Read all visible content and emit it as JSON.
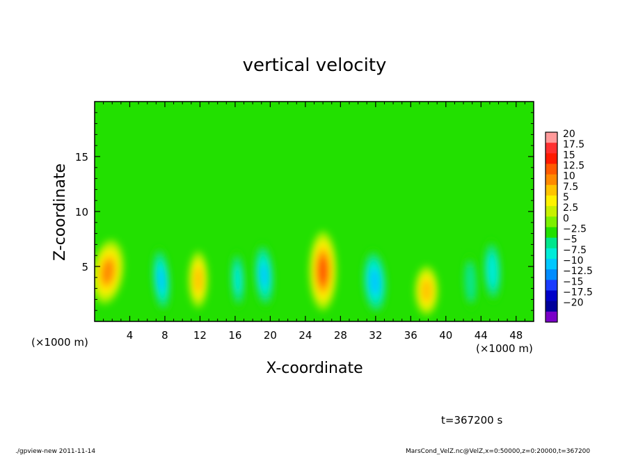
{
  "chart_data": {
    "type": "heatmap",
    "title": "vertical velocity",
    "xlabel": "X-coordinate",
    "ylabel": "Z-coordinate",
    "x_unit_left": "(×1000 m)",
    "x_unit_right": "(×1000 m)",
    "xlim": [
      0,
      50
    ],
    "ylim": [
      0,
      20
    ],
    "x_ticks": [
      4,
      8,
      12,
      16,
      20,
      24,
      28,
      32,
      36,
      40,
      44,
      48
    ],
    "y_ticks": [
      5,
      10,
      15
    ],
    "x_tick_labels": [
      "4",
      "8",
      "12",
      "16",
      "20",
      "24",
      "28",
      "32",
      "36",
      "40",
      "44",
      "48"
    ],
    "y_tick_labels": [
      "5",
      "10",
      "15"
    ],
    "colorbar": {
      "levels": [
        20,
        17.5,
        15,
        12.5,
        10,
        7.5,
        5,
        2.5,
        0,
        -2.5,
        -5,
        -7.5,
        -10,
        -12.5,
        -15,
        -17.5,
        -20
      ],
      "labels": [
        "20",
        "17.5",
        "15",
        "12.5",
        "10",
        "7.5",
        "5",
        "2.5",
        "0",
        "−2.5",
        "−5",
        "−7.5",
        "−10",
        "−12.5",
        "−15",
        "−17.5",
        "−20"
      ],
      "colors": [
        "#ff9a9a",
        "#ff3030",
        "#ff1a00",
        "#ff5a00",
        "#ff8a00",
        "#ffc400",
        "#fff200",
        "#c8f000",
        "#7cf000",
        "#22e000",
        "#00e68c",
        "#00ecd8",
        "#00c8ff",
        "#008cff",
        "#1a3cff",
        "#0000c8",
        "#00009a",
        "#7a00c8"
      ]
    },
    "cells": [
      {
        "x": 1.5,
        "z": 4.5,
        "w": -0.3,
        "sx": 1.6,
        "sz": 2.6,
        "value": 14
      },
      {
        "x": 7.6,
        "z": 3.8,
        "w": 0.2,
        "sx": 0.9,
        "sz": 2.6,
        "value": -10
      },
      {
        "x": 11.8,
        "z": 3.8,
        "w": 0,
        "sx": 1.0,
        "sz": 2.3,
        "value": 12
      },
      {
        "x": 16.3,
        "z": 3.8,
        "w": 0.1,
        "sx": 0.7,
        "sz": 2.3,
        "value": -8
      },
      {
        "x": 19.3,
        "z": 4.2,
        "w": 0.15,
        "sx": 1.0,
        "sz": 2.6,
        "value": -10
      },
      {
        "x": 26.0,
        "z": 4.6,
        "w": 0,
        "sx": 1.4,
        "sz": 3.2,
        "value": 17
      },
      {
        "x": 31.9,
        "z": 3.6,
        "w": 0.15,
        "sx": 1.2,
        "sz": 2.6,
        "value": -11
      },
      {
        "x": 37.8,
        "z": 2.8,
        "w": 0,
        "sx": 1.2,
        "sz": 2.0,
        "value": 12
      },
      {
        "x": 42.8,
        "z": 3.6,
        "w": 0.1,
        "sx": 0.7,
        "sz": 2.2,
        "value": -6
      },
      {
        "x": 45.3,
        "z": 4.6,
        "w": 0.1,
        "sx": 0.9,
        "sz": 2.5,
        "value": -9
      }
    ]
  },
  "annotation": {
    "time": "t=367200 s",
    "footer_left": "./gpview-new   2011-11-14",
    "footer_right": "MarsCond_VelZ.nc@VelZ,x=0:50000,z=0:20000,t=367200"
  }
}
